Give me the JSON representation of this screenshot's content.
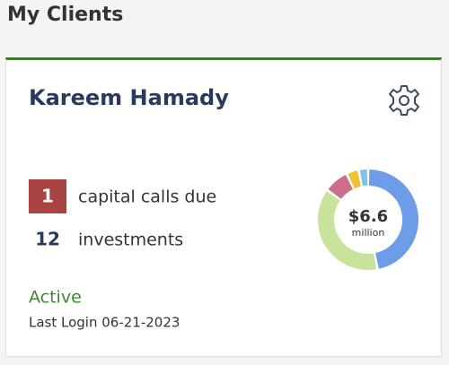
{
  "header": {
    "title": "My Clients"
  },
  "card": {
    "name": "Kareem Hamady",
    "capital_calls_count": 1,
    "capital_calls_label": "capital calls due",
    "investments_count": 12,
    "investments_label": "investments",
    "status": "Active",
    "last_login": "Last Login 06-21-2023"
  },
  "chart_data": {
    "type": "donut",
    "center_value": "$6.6",
    "center_unit": "million",
    "values": [
      47,
      38,
      8,
      4,
      3
    ],
    "colors": [
      "#6d9ce8",
      "#c9e29c",
      "#cc7089",
      "#f0c234",
      "#7cc4ea"
    ]
  }
}
